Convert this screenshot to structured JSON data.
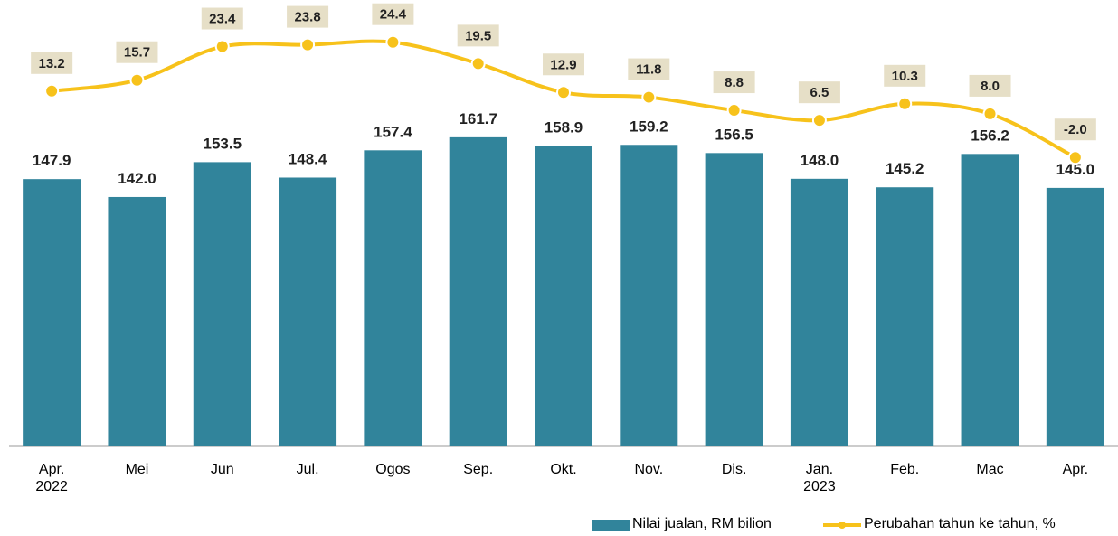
{
  "chart_data": {
    "type": "bar",
    "categories": [
      "Apr. 2022",
      "Mei",
      "Jun",
      "Jul.",
      "Ogos",
      "Sep.",
      "Okt.",
      "Nov.",
      "Dis.",
      "Jan. 2023",
      "Feb.",
      "Mac",
      "Apr."
    ],
    "ylim": [
      60,
      204
    ],
    "y2lim": [
      -68,
      32
    ],
    "series": [
      {
        "name": "Nilai jualan, RM bilion",
        "type": "bar",
        "color": "#31849b",
        "values": [
          147.9,
          142.0,
          153.5,
          148.4,
          157.4,
          161.7,
          158.9,
          159.2,
          156.5,
          148.0,
          145.2,
          156.2,
          145.0
        ],
        "value_labels": [
          "147.9",
          "142.0",
          "153.5",
          "148.4",
          "157.4",
          "161.7",
          "158.9",
          "159.2",
          "156.5",
          "148.0",
          "145.2",
          "156.2",
          "145.0"
        ]
      },
      {
        "name": "Perubahan tahun ke tahun, %",
        "type": "line",
        "axis": "y2",
        "color": "#f7c21b",
        "values": [
          13.2,
          15.7,
          23.4,
          23.8,
          24.4,
          19.5,
          12.9,
          11.8,
          8.8,
          6.5,
          10.3,
          8.0,
          -2.0
        ],
        "value_labels": [
          "13.2",
          "15.7",
          "23.4",
          "23.8",
          "24.4",
          "19.5",
          "12.9",
          "11.8",
          "8.8",
          "6.5",
          "10.3",
          "8.0",
          "-2.0"
        ]
      }
    ],
    "legend": "bottom-right"
  }
}
